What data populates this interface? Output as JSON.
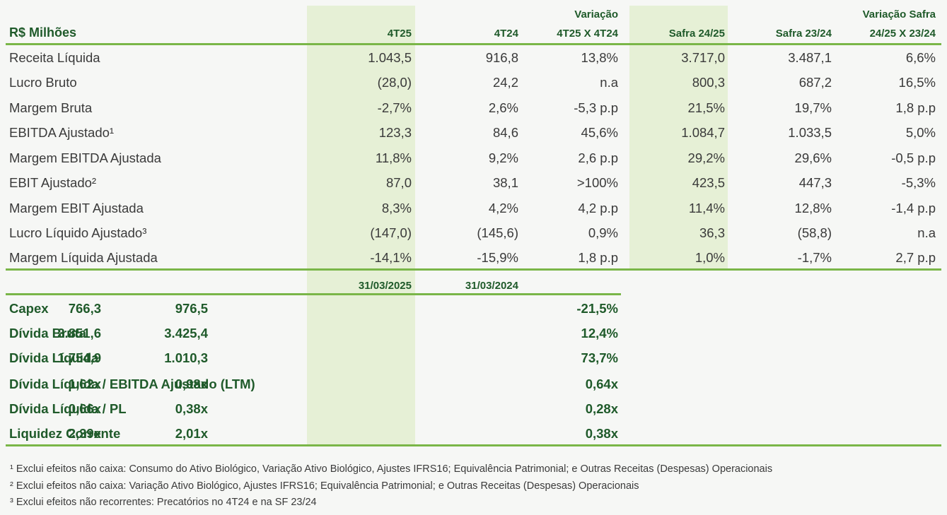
{
  "header": {
    "title": "R$ Milhões",
    "col1": "4T25",
    "col2": "4T24",
    "col3_line1": "Variação",
    "col3_line2": "4T25 X 4T24",
    "col4": "Safra 24/25",
    "col5": "Safra 23/24",
    "col6_line1": "Variação Safra",
    "col6_line2": "24/25 X 23/24"
  },
  "rows": [
    {
      "label": "Receita Líquida",
      "v": [
        "1.043,5",
        "916,8",
        "13,8%",
        "3.717,0",
        "3.487,1",
        "6,6%"
      ]
    },
    {
      "label": "Lucro Bruto",
      "v": [
        "(28,0)",
        "24,2",
        "n.a",
        "800,3",
        "687,2",
        "16,5%"
      ]
    },
    {
      "label": "Margem Bruta",
      "v": [
        "-2,7%",
        "2,6%",
        "-5,3 p.p",
        "21,5%",
        "19,7%",
        "1,8 p.p"
      ]
    },
    {
      "label": "EBITDA Ajustado¹",
      "v": [
        "123,3",
        "84,6",
        "45,6%",
        "1.084,7",
        "1.033,5",
        "5,0%"
      ]
    },
    {
      "label": "Margem EBITDA Ajustada",
      "v": [
        "11,8%",
        "9,2%",
        "2,6 p.p",
        "29,2%",
        "29,6%",
        "-0,5 p.p"
      ]
    },
    {
      "label": "EBIT Ajustado²",
      "v": [
        "87,0",
        "38,1",
        ">100%",
        "423,5",
        "447,3",
        "-5,3%"
      ]
    },
    {
      "label": "Margem EBIT Ajustada",
      "v": [
        "8,3%",
        "4,2%",
        "4,2 p.p",
        "11,4%",
        "12,8%",
        "-1,4 p.p"
      ]
    },
    {
      "label": "Lucro Líquido Ajustado³",
      "v": [
        "(147,0)",
        "(145,6)",
        "0,9%",
        "36,3",
        "(58,8)",
        "n.a"
      ]
    },
    {
      "label": "Margem Líquida Ajustada",
      "v": [
        "-14,1%",
        "-15,9%",
        "1,8 p.p",
        "1,0%",
        "-1,7%",
        "2,7 p.p"
      ]
    }
  ],
  "balance_header": {
    "col1": "31/03/2025",
    "col2": "31/03/2024"
  },
  "balance_rows": [
    {
      "label": "Capex",
      "v": [
        "766,3",
        "976,5",
        "-21,5%"
      ]
    },
    {
      "label": "Dívida Bruta",
      "v": [
        "3.851,6",
        "3.425,4",
        "12,4%"
      ]
    },
    {
      "label": "Dívida Líquida",
      "v": [
        "1.754,9",
        "1.010,3",
        "73,7%"
      ]
    },
    {
      "label": "Dívida Líquida / EBITDA Ajustado (LTM)",
      "v": [
        "1,62x",
        "0,98x",
        "0,64x"
      ]
    },
    {
      "label": "Dívida Líquida / PL",
      "v": [
        "0,66x",
        "0,38x",
        "0,28x"
      ]
    },
    {
      "label": "Liquidez Corrente",
      "v": [
        "2,39x",
        "2,01x",
        "0,38x"
      ]
    }
  ],
  "footnotes": [
    "¹ Exclui efeitos não caixa: Consumo do Ativo Biológico, Variação Ativo Biológico, Ajustes IFRS16; Equivalência Patrimonial; e Outras Receitas (Despesas) Operacionais",
    "² Exclui efeitos não caixa: Variação Ativo Biológico, Ajustes IFRS16; Equivalência Patrimonial; e Outras Receitas (Despesas) Operacionais",
    "³ Exclui efeitos não recorrentes: Precatórios no 4T24 e na SF 23/24"
  ]
}
